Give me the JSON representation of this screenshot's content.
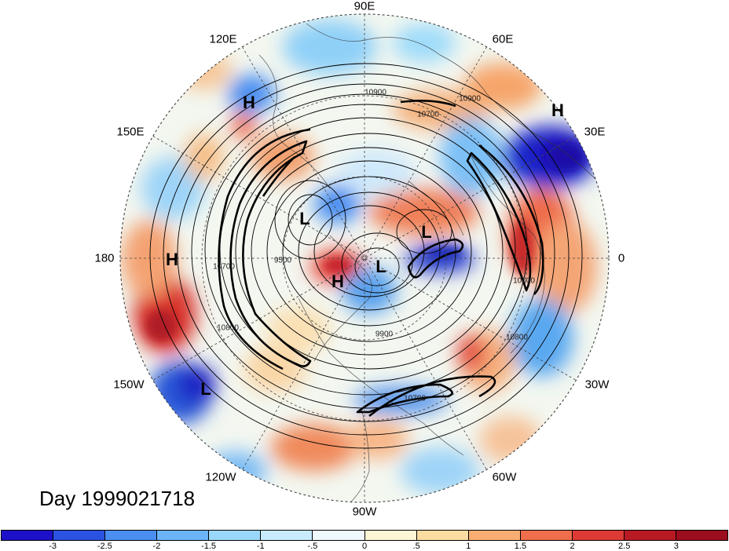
{
  "title": "Day 1999021718",
  "longitude_labels": [
    "90E",
    "60E",
    "30E",
    "0",
    "30W",
    "60W",
    "90W",
    "120W",
    "150W",
    "180",
    "150E",
    "120E"
  ],
  "pressure_systems": [
    {
      "type": "H"
    },
    {
      "type": "H"
    },
    {
      "type": "L"
    },
    {
      "type": "L"
    },
    {
      "type": "H"
    },
    {
      "type": "H"
    },
    {
      "type": "L"
    },
    {
      "type": "L"
    }
  ],
  "contour_labels": [
    "10900",
    "10700",
    "10900",
    "9500",
    "10700",
    "10800",
    "10600",
    "10800",
    "9900",
    "10700"
  ],
  "colorbar": {
    "ticks": [
      "-3",
      "-2.5",
      "-2",
      "-1.5",
      "-1",
      "-.5",
      "0",
      ".5",
      "1",
      "1.5",
      "2",
      "2.5",
      "3"
    ],
    "colors": [
      "#1c10c8",
      "#2b52e0",
      "#4a8ef0",
      "#6cb4f8",
      "#9ad8fb",
      "#c8ecfd",
      "#eef8fd",
      "#fdf6d6",
      "#fcdca0",
      "#f8ae72",
      "#ef6e4c",
      "#dc3a34",
      "#b81a24",
      "#9a0e1e"
    ]
  }
}
